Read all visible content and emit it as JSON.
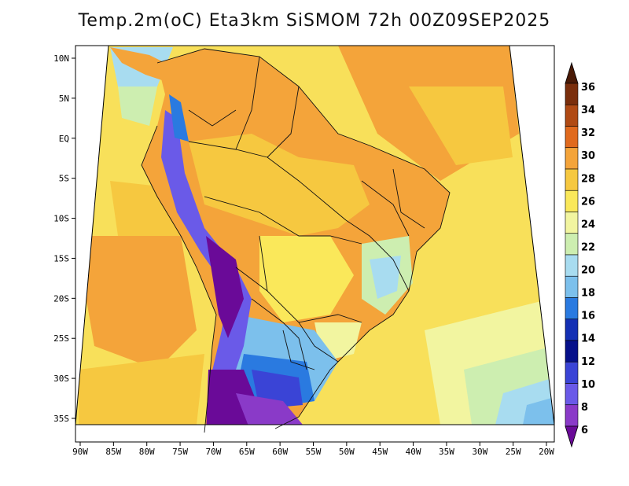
{
  "title": "Temp.2m(oC) Eta3km SiSMOM 72h 00Z09SEP2025",
  "map": {
    "lon_labels": [
      "90W",
      "85W",
      "80W",
      "75W",
      "70W",
      "65W",
      "60W",
      "55W",
      "50W",
      "45W",
      "40W",
      "35W",
      "30W",
      "25W",
      "20W"
    ],
    "lat_labels": [
      "10N",
      "5N",
      "EQ",
      "5S",
      "10S",
      "15S",
      "20S",
      "25S",
      "30S",
      "35S"
    ],
    "lon_range": [
      -90,
      -20
    ],
    "lat_range": [
      -38,
      12
    ]
  },
  "colorbar": {
    "labels": [
      "36",
      "34",
      "32",
      "30",
      "28",
      "26",
      "24",
      "22",
      "20",
      "18",
      "16",
      "14",
      "12",
      "10",
      "8",
      "6"
    ],
    "colors": [
      "#4a1a06",
      "#7a2e0c",
      "#b04a14",
      "#e06a1e",
      "#f4a43a",
      "#f6c840",
      "#fae85a",
      "#f2f5a0",
      "#cdeeb0",
      "#a8dcf0",
      "#7cc0ec",
      "#2a7ae0",
      "#1430b4",
      "#06108a",
      "#3a44d6",
      "#6a5ae8",
      "#8a3ac8",
      "#6a0a98"
    ]
  }
}
